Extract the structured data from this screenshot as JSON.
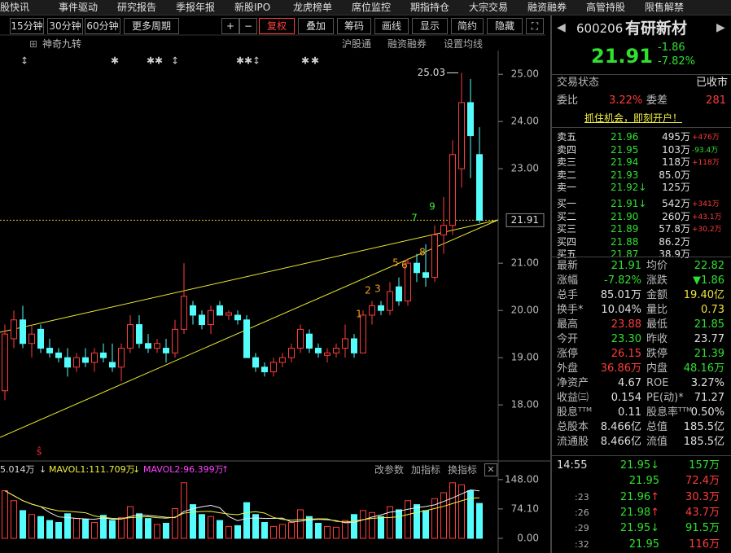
{
  "menu": [
    "股快讯",
    "事件驱动",
    "研究报告",
    "季报年报",
    "新股IPO",
    "龙虎榜单",
    "席位监控",
    "期指持仓",
    "大宗交易",
    "融资融券",
    "高管持股",
    "限售解禁"
  ],
  "toolbar": {
    "periods": [
      "15分钟",
      "30分钟",
      "60分钟",
      "更多周期"
    ],
    "tools": [
      "复权",
      "叠加",
      "筹码",
      "画线",
      "显示",
      "简约",
      "隐藏"
    ]
  },
  "indicator": {
    "name": "神奇九转",
    "links": [
      "沪股通",
      "融资融券",
      "设置均线"
    ]
  },
  "kline": {
    "ylim": [
      16.83,
      25.4
    ],
    "yticks": [
      {
        "value": 25,
        "label": "25.00"
      },
      {
        "value": 24,
        "label": "24.00"
      },
      {
        "value": 23,
        "label": "23.00"
      },
      {
        "value": 21,
        "label": "21.00"
      },
      {
        "value": 20,
        "label": "20.00"
      },
      {
        "value": 19,
        "label": "19.00"
      },
      {
        "value": 18,
        "label": "18.00"
      }
    ],
    "candles": [
      [
        18.3,
        19.7,
        18.1,
        19.5
      ],
      [
        19.4,
        20.0,
        19.2,
        19.8
      ],
      [
        19.8,
        20.1,
        19.2,
        19.3
      ],
      [
        19.3,
        19.7,
        19.0,
        19.5
      ],
      [
        19.6,
        19.7,
        19.1,
        19.2
      ],
      [
        19.2,
        19.4,
        19.0,
        19.1
      ],
      [
        19.1,
        19.2,
        18.9,
        19.0
      ],
      [
        19.0,
        19.2,
        18.6,
        18.8
      ],
      [
        18.8,
        19.1,
        18.7,
        19.0
      ],
      [
        19.0,
        19.2,
        18.8,
        18.9
      ],
      [
        18.9,
        19.2,
        18.7,
        19.1
      ],
      [
        19.1,
        19.3,
        18.9,
        19.0
      ],
      [
        18.9,
        19.3,
        18.7,
        18.8
      ],
      [
        18.8,
        19.3,
        18.5,
        19.2
      ],
      [
        19.2,
        19.9,
        19.1,
        19.7
      ],
      [
        19.7,
        19.9,
        19.2,
        19.3
      ],
      [
        19.3,
        19.5,
        19.1,
        19.2
      ],
      [
        19.2,
        19.4,
        19.1,
        19.3
      ],
      [
        19.2,
        19.4,
        18.9,
        19.1
      ],
      [
        19.1,
        19.8,
        19.0,
        19.6
      ],
      [
        19.6,
        21.0,
        19.5,
        20.3
      ],
      [
        20.1,
        20.2,
        19.7,
        19.9
      ],
      [
        19.9,
        20.0,
        19.6,
        19.7
      ],
      [
        19.7,
        20.1,
        19.5,
        20.0
      ],
      [
        20.1,
        20.2,
        19.9,
        19.9
      ],
      [
        19.9,
        20.0,
        19.8,
        19.95
      ],
      [
        19.9,
        20.0,
        19.7,
        19.8
      ],
      [
        19.8,
        19.9,
        19.0,
        19.0
      ],
      [
        19.0,
        19.1,
        18.7,
        18.8
      ],
      [
        18.8,
        18.9,
        18.6,
        18.7
      ],
      [
        18.7,
        19.0,
        18.6,
        18.9
      ],
      [
        18.9,
        19.1,
        18.8,
        19.0
      ],
      [
        19.0,
        19.3,
        18.9,
        19.2
      ],
      [
        19.2,
        19.7,
        19.1,
        19.6
      ],
      [
        19.5,
        19.6,
        19.1,
        19.2
      ],
      [
        19.2,
        19.3,
        19.0,
        19.1
      ],
      [
        19.05,
        19.2,
        18.9,
        19.1
      ],
      [
        19.1,
        19.3,
        19.0,
        19.2
      ],
      [
        19.2,
        19.7,
        19.0,
        19.4
      ],
      [
        19.4,
        19.5,
        19.0,
        19.1
      ],
      [
        19.1,
        20.0,
        19.1,
        19.9
      ],
      [
        19.9,
        20.2,
        19.7,
        20.1
      ],
      [
        20.1,
        20.2,
        19.9,
        20.0
      ],
      [
        20.0,
        20.6,
        19.9,
        20.4
      ],
      [
        20.5,
        20.7,
        20.1,
        20.2
      ],
      [
        20.2,
        21.1,
        20.1,
        21.0
      ],
      [
        21.0,
        21.2,
        20.6,
        20.8
      ],
      [
        20.8,
        21.4,
        20.5,
        20.7
      ],
      [
        20.7,
        21.8,
        20.6,
        21.6
      ],
      [
        21.6,
        22.4,
        21.2,
        21.8
      ],
      [
        21.8,
        23.6,
        21.6,
        23.3
      ],
      [
        23.0,
        25.03,
        22.6,
        24.4
      ],
      [
        24.4,
        24.9,
        22.8,
        23.7
      ],
      [
        23.3,
        23.88,
        21.85,
        21.91
      ]
    ],
    "high_label": 25.03,
    "last": 21.91,
    "td_marks": [
      "1",
      "2",
      "3",
      "5",
      "6",
      "8",
      "7",
      "9"
    ]
  },
  "volume": {
    "title": "5.014万",
    "ma1": "MAVOL1:111.709万",
    "ma2": "MAVOL2:96.399万",
    "actions": [
      "改参数",
      "加指标",
      "换指标"
    ],
    "ylim": [
      0,
      156
    ],
    "yticks": [
      {
        "value": 148,
        "label": "148.00"
      },
      {
        "value": 74.1,
        "label": "74.10"
      },
      {
        "value": 0,
        "label": "0.00"
      }
    ],
    "values": [
      120,
      95,
      70,
      60,
      55,
      45,
      40,
      62,
      50,
      48,
      40,
      58,
      45,
      52,
      80,
      62,
      50,
      35,
      38,
      75,
      140,
      85,
      60,
      55,
      45,
      30,
      32,
      90,
      60,
      40,
      30,
      35,
      40,
      72,
      55,
      38,
      30,
      28,
      45,
      60,
      70,
      65,
      55,
      80,
      72,
      95,
      85,
      70,
      100,
      115,
      140,
      135,
      120,
      88
    ]
  },
  "quote": {
    "code": "600206",
    "name": "有研新材",
    "price": "21.91",
    "change": "-1.86",
    "pct": "-7.82%",
    "status": [
      "交易状态",
      "已收市"
    ],
    "weibi": [
      "委比",
      "3.22%",
      "委差",
      "281"
    ],
    "banner": "抓住机会，即刻开户！",
    "book": [
      [
        "卖五",
        "21.96",
        "495万",
        "+476万"
      ],
      [
        "卖四",
        "21.95",
        "103万",
        "-93.4万"
      ],
      [
        "卖三",
        "21.94",
        "118万",
        "+118万"
      ],
      [
        "卖二",
        "21.93",
        "85.0万",
        null
      ],
      [
        "卖一",
        "21.92↓",
        "125万",
        null
      ],
      [
        "买一",
        "21.91↓",
        "542万",
        "+341万"
      ],
      [
        "买二",
        "21.90",
        "260万",
        "+43.1万"
      ],
      [
        "买三",
        "21.89",
        "57.8万",
        "+30.2万"
      ],
      [
        "买四",
        "21.88",
        "86.2万",
        null
      ],
      [
        "买五",
        "21.87",
        "38.9万",
        null
      ]
    ],
    "stats": [
      [
        "最新",
        "21.91",
        "均价",
        "22.82"
      ],
      [
        "涨幅",
        "-7.82%",
        "涨跌",
        "▼1.86"
      ],
      [
        "总手",
        "85.01万",
        "金额",
        "19.40亿"
      ],
      [
        "换手*",
        "10.04%",
        "量比",
        "0.73"
      ],
      [
        "最高",
        "23.88",
        "最低",
        "21.85"
      ],
      [
        "今开",
        "23.30",
        "昨收",
        "23.77"
      ],
      [
        "涨停",
        "26.15",
        "跌停",
        "21.39"
      ],
      [
        "外盘",
        "36.86万",
        "内盘",
        "48.16万"
      ],
      [
        "净资产",
        "4.67",
        "ROE",
        "3.27%"
      ],
      [
        "收益㈢",
        "0.154",
        "PE(动)*",
        "71.27"
      ],
      [
        "股息ᵀᵀᴹ",
        "0.11",
        "股息率ᵀᵀᴹ",
        "0.50%"
      ],
      [
        "总股本",
        "8.466亿",
        "总值",
        "185.5亿"
      ],
      [
        "流通股",
        "8.466亿",
        "流值",
        "185.5亿"
      ]
    ],
    "ticks": [
      [
        "14:55",
        "21.95↓",
        "157万"
      ],
      [
        null,
        "21.95",
        "72.4万"
      ],
      [
        ":23",
        "21.96↑",
        "30.3万"
      ],
      [
        ":26",
        "21.98↑",
        "43.7万"
      ],
      [
        ":29",
        "21.95↓",
        "91.5万"
      ],
      [
        ":32",
        "21.95",
        "116万"
      ]
    ]
  }
}
